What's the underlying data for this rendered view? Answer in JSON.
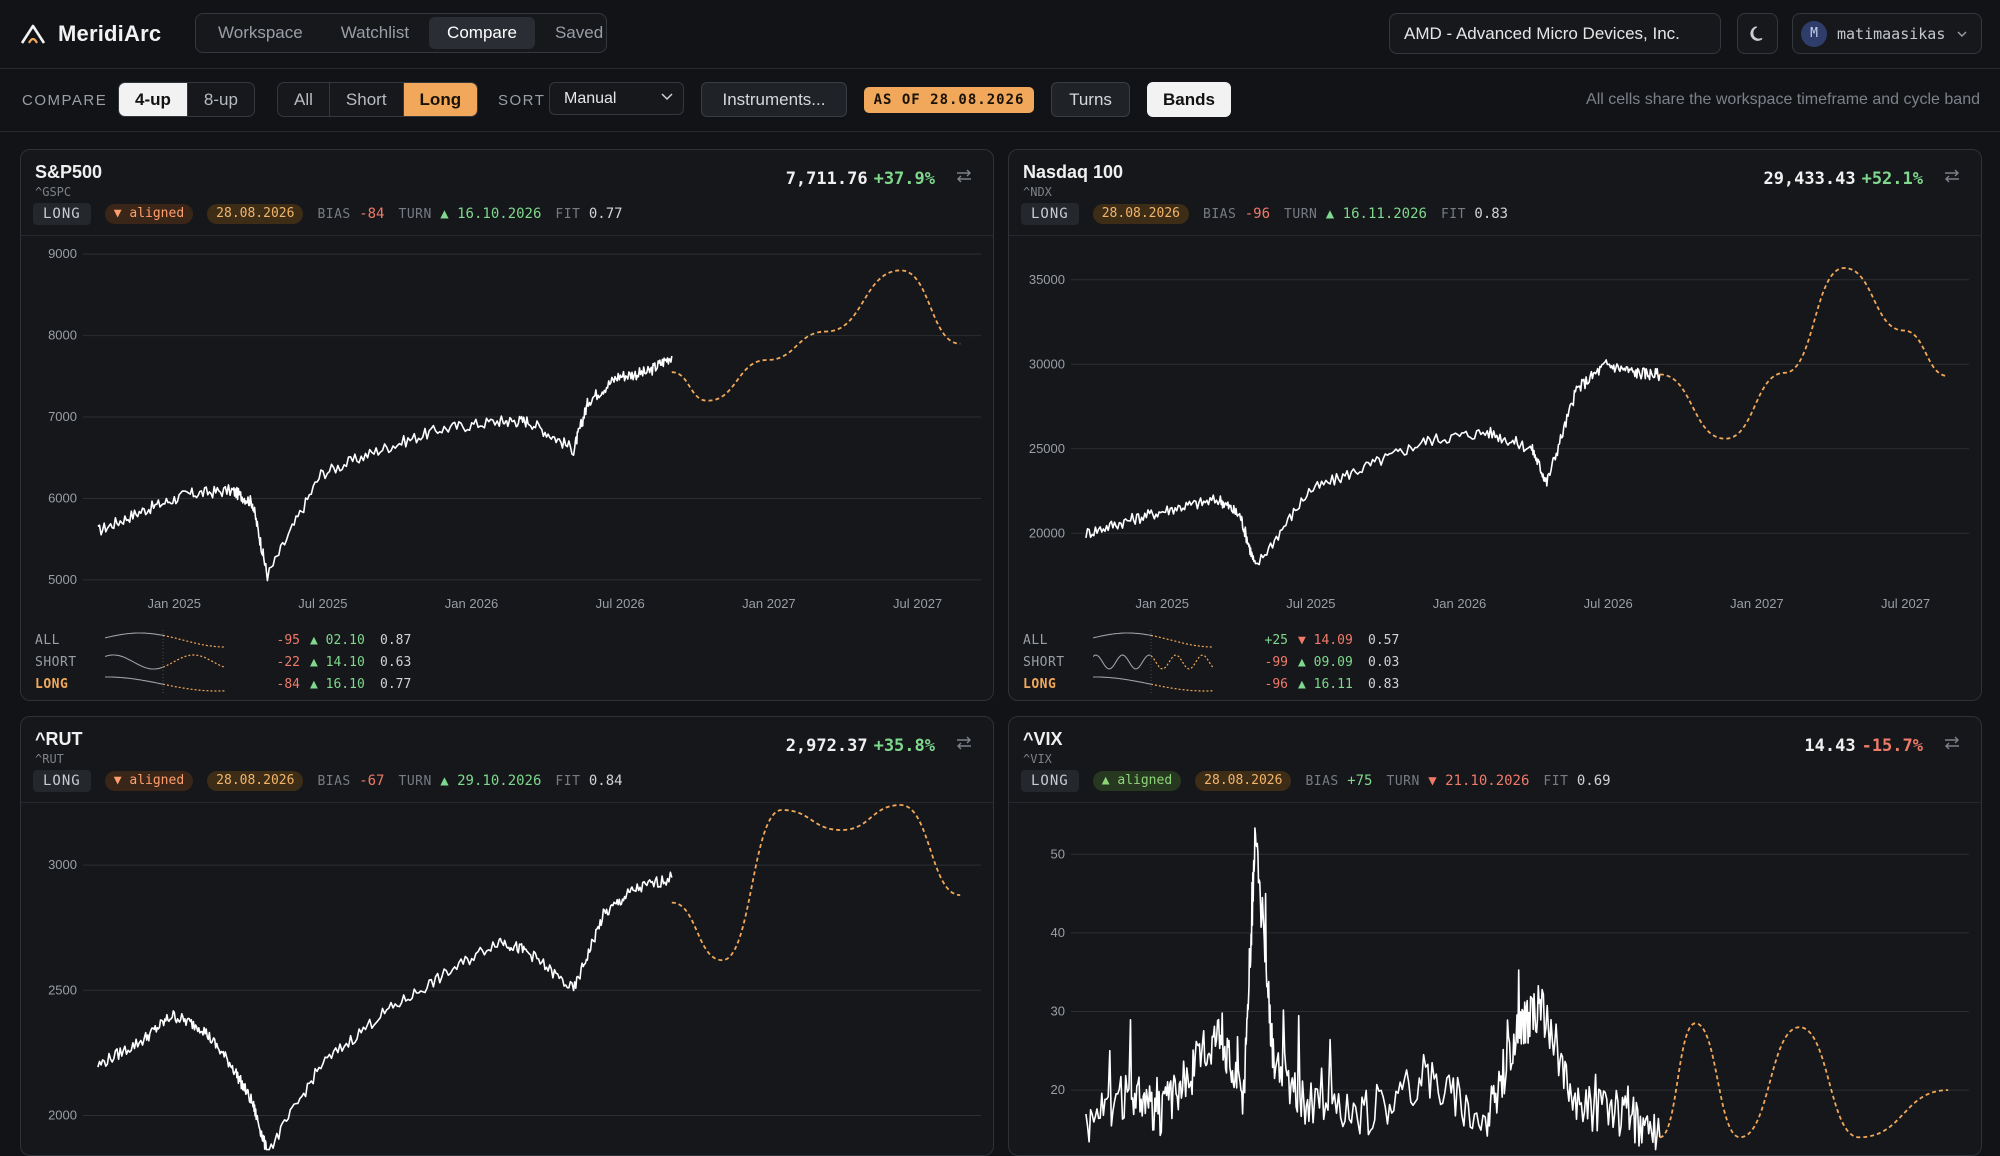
{
  "app": {
    "name": "MeridiArc"
  },
  "nav": {
    "tabs": [
      "Workspace",
      "Watchlist",
      "Compare",
      "Saved"
    ],
    "active": 2
  },
  "header": {
    "symbol": "AMD - Advanced Micro Devices, Inc.",
    "user_initial": "M",
    "username": "matimaasikas"
  },
  "toolbar": {
    "compare_label": "COMPARE",
    "layouts": [
      "4-up",
      "8-up"
    ],
    "layout_active": 0,
    "filters": [
      "All",
      "Short",
      "Long"
    ],
    "filter_active": 2,
    "sort_label": "SORT",
    "sort_value": "Manual",
    "instruments_label": "Instruments...",
    "as_of": "AS OF 28.08.2026",
    "turns_label": "Turns",
    "bands_label": "Bands",
    "note": "All cells share the workspace timeframe and cycle band"
  },
  "colors": {
    "accent": "#f1a85a",
    "up": "#7fd88d",
    "down": "#f07a6a",
    "line": "#ffffff",
    "projection": "#f1a85a"
  },
  "cards": [
    {
      "name": "S&P500",
      "ticker": "^GSPC",
      "price": "7,711.76",
      "change": "+37.9%",
      "change_dir": "up",
      "mode": "LONG",
      "aligned": "▼ aligned",
      "aligned_dir": "down",
      "date": "28.08.2026",
      "bias_label": "BIAS",
      "bias": "-84",
      "turn_label": "TURN",
      "turn_arrow": "▲",
      "turn": "16.10.2026",
      "fit_label": "FIT",
      "fit": "0.77",
      "summary": [
        {
          "label": "ALL",
          "bias": "-95",
          "turn": "▲ 02.10",
          "fit": "0.87"
        },
        {
          "label": "SHORT",
          "bias": "-22",
          "turn": "▲ 14.10",
          "fit": "0.63"
        },
        {
          "label": "LONG",
          "bias": "-84",
          "turn": "▲ 16.10",
          "fit": "0.77"
        }
      ]
    },
    {
      "name": "Nasdaq 100",
      "ticker": "^NDX",
      "price": "29,433.43",
      "change": "+52.1%",
      "change_dir": "up",
      "mode": "LONG",
      "aligned": "",
      "aligned_dir": "",
      "date": "28.08.2026",
      "bias_label": "BIAS",
      "bias": "-96",
      "turn_label": "TURN",
      "turn_arrow": "▲",
      "turn": "16.11.2026",
      "fit_label": "FIT",
      "fit": "0.83",
      "summary": [
        {
          "label": "ALL",
          "bias": "+25",
          "turn": "▼ 14.09",
          "fit": "0.57"
        },
        {
          "label": "SHORT",
          "bias": "-99",
          "turn": "▲ 09.09",
          "fit": "0.03"
        },
        {
          "label": "LONG",
          "bias": "-96",
          "turn": "▲ 16.11",
          "fit": "0.83"
        }
      ]
    },
    {
      "name": "^RUT",
      "ticker": "^RUT",
      "price": "2,972.37",
      "change": "+35.8%",
      "change_dir": "up",
      "mode": "LONG",
      "aligned": "▼ aligned",
      "aligned_dir": "down",
      "date": "28.08.2026",
      "bias_label": "BIAS",
      "bias": "-67",
      "turn_label": "TURN",
      "turn_arrow": "▲",
      "turn": "29.10.2026",
      "fit_label": "FIT",
      "fit": "0.84",
      "summary": []
    },
    {
      "name": "^VIX",
      "ticker": "^VIX",
      "price": "14.43",
      "change": "-15.7%",
      "change_dir": "down",
      "mode": "LONG",
      "aligned": "▲ aligned",
      "aligned_dir": "up",
      "date": "28.08.2026",
      "bias_label": "BIAS",
      "bias": "+75",
      "turn_label": "TURN",
      "turn_arrow": "▼",
      "turn": "21.10.2026",
      "fit_label": "FIT",
      "fit": "0.69",
      "summary": []
    }
  ],
  "chart_data": [
    {
      "type": "line",
      "title": "S&P500",
      "x_ticks": [
        "Jan 2025",
        "Jul 2025",
        "Jan 2026",
        "Jul 2026",
        "Jan 2027",
        "Jul 2027"
      ],
      "y_ticks": [
        5000,
        6000,
        7000,
        8000,
        9000
      ],
      "ylim": [
        4950,
        9100
      ],
      "x": [
        2024.75,
        2024.9,
        2025.05,
        2025.2,
        2025.27,
        2025.32,
        2025.5,
        2025.7,
        2025.9,
        2026.1,
        2026.2,
        2026.35,
        2026.4,
        2026.5,
        2026.6,
        2026.68
      ],
      "values": [
        5600,
        5850,
        6050,
        6100,
        5950,
        5050,
        6300,
        6600,
        6850,
        6950,
        6950,
        6600,
        7200,
        7500,
        7550,
        7750
      ],
      "projection": {
        "x": [
          2026.68,
          2026.8,
          2027.0,
          2027.2,
          2027.45,
          2027.65
        ],
        "values": [
          7550,
          7200,
          7700,
          8050,
          8800,
          7900
        ]
      }
    },
    {
      "type": "line",
      "title": "Nasdaq 100",
      "x_ticks": [
        "Jan 2025",
        "Jul 2025",
        "Jan 2026",
        "Jul 2026",
        "Jan 2027",
        "Jul 2027"
      ],
      "y_ticks": [
        20000,
        25000,
        30000,
        35000
      ],
      "ylim": [
        17000,
        37000
      ],
      "x": [
        2024.75,
        2024.9,
        2025.05,
        2025.2,
        2025.27,
        2025.32,
        2025.5,
        2025.7,
        2025.9,
        2026.1,
        2026.25,
        2026.3,
        2026.4,
        2026.5,
        2026.6,
        2026.68
      ],
      "values": [
        20000,
        20800,
        21500,
        22000,
        21000,
        18000,
        22500,
        24000,
        25500,
        26000,
        25000,
        23000,
        28500,
        30000,
        29500,
        29400
      ],
      "projection": {
        "x": [
          2026.68,
          2026.9,
          2027.1,
          2027.3,
          2027.5,
          2027.65
        ],
        "values": [
          29400,
          25600,
          29500,
          35700,
          32000,
          29300
        ]
      }
    },
    {
      "type": "line",
      "title": "^RUT",
      "x_ticks": [],
      "y_ticks": [
        2000,
        2500,
        3000
      ],
      "ylim": [
        1850,
        3200
      ],
      "x": [
        2024.75,
        2024.9,
        2025.0,
        2025.1,
        2025.2,
        2025.27,
        2025.32,
        2025.5,
        2025.7,
        2025.9,
        2026.1,
        2026.2,
        2026.35,
        2026.45,
        2026.55,
        2026.68
      ],
      "values": [
        2200,
        2300,
        2400,
        2350,
        2200,
        2050,
        1850,
        2200,
        2400,
        2550,
        2700,
        2650,
        2500,
        2800,
        2900,
        2950
      ],
      "projection": {
        "x": [
          2026.68,
          2026.85,
          2027.05,
          2027.25,
          2027.45,
          2027.65
        ],
        "values": [
          2850,
          2620,
          3220,
          3140,
          3240,
          2880
        ]
      }
    },
    {
      "type": "line",
      "title": "^VIX",
      "x_ticks": [],
      "y_ticks": [
        20,
        30,
        40,
        50
      ],
      "ylim": [
        12,
        55
      ],
      "x": [
        2024.75,
        2024.9,
        2025.0,
        2025.1,
        2025.2,
        2025.28,
        2025.32,
        2025.38,
        2025.5,
        2025.7,
        2025.9,
        2026.1,
        2026.2,
        2026.28,
        2026.4,
        2026.55,
        2026.68
      ],
      "values": [
        16,
        20,
        17,
        22,
        28,
        18,
        52,
        24,
        18,
        17,
        22,
        16,
        27,
        31,
        18,
        17,
        14
      ],
      "projection": {
        "x": [
          2026.68,
          2026.8,
          2026.95,
          2027.15,
          2027.35,
          2027.65
        ],
        "values": [
          14,
          28.5,
          14,
          28,
          14,
          20
        ]
      }
    }
  ]
}
